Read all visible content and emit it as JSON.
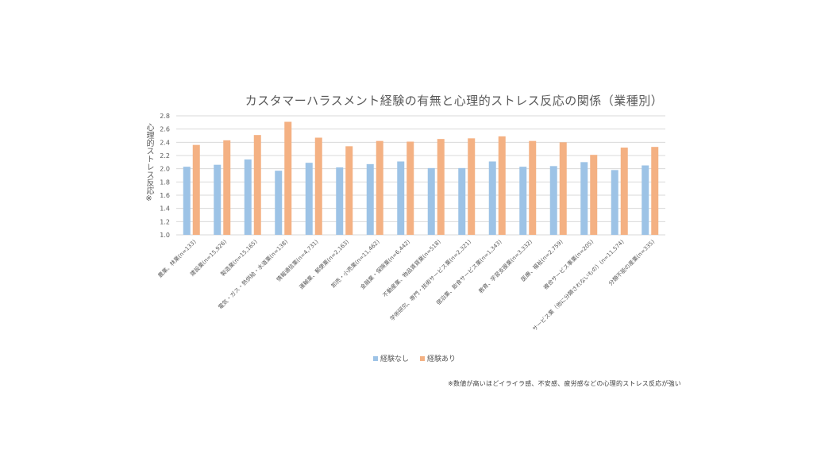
{
  "chart_data": {
    "type": "bar",
    "title": "カスタマーハラスメント経験の有無と心理的ストレス反応の関係（業種別）",
    "ylabel": "心理的ストレス反応※",
    "xlabel": "",
    "ylim": [
      1.0,
      2.8
    ],
    "yticks": [
      "1.0",
      "1.2",
      "1.4",
      "1.6",
      "1.8",
      "2.0",
      "2.2",
      "2.4",
      "2.6",
      "2.8"
    ],
    "grid": true,
    "legend_position": "bottom",
    "categories": [
      "農業、林業(n=133)",
      "建設業(n=15,926)",
      "製造業(n=15,165)",
      "電気・ガス・熱供給・水道業(n=138)",
      "情報通信業(n=4,731)",
      "運輸業、郵便業(n=2,163)",
      "卸売・小売業(n=11,462)",
      "金融業・保険業(n=6,442)",
      "不動産業、物品賃貸業(n=518)",
      "学術研究、専門・技術サービス業(n=2,321)",
      "宿泊業、飲食サービス業(n=1,343)",
      "教育、学習支援業(n=3,332)",
      "医療、福祉(n=2,759)",
      "複合サービス事業(n=205)",
      "サービス業（他に分類されないもの）(n=11,574)",
      "分類不能の産業(n=335)"
    ],
    "series": [
      {
        "name": "経験なし",
        "values": [
          2.03,
          2.06,
          2.14,
          1.97,
          2.09,
          2.02,
          2.07,
          2.11,
          2.01,
          2.01,
          2.11,
          2.03,
          2.04,
          2.1,
          1.98,
          2.05
        ]
      },
      {
        "name": "経験あり",
        "values": [
          2.36,
          2.43,
          2.51,
          2.71,
          2.47,
          2.34,
          2.42,
          2.41,
          2.45,
          2.46,
          2.49,
          2.42,
          2.4,
          2.21,
          2.32,
          2.33
        ]
      }
    ],
    "colors": {
      "経験なし": "#9dc3e6",
      "経験あり": "#f4b183",
      "grid": "#d9d9d9",
      "text": "#595959"
    }
  },
  "footnote": "※数値が高いほどイライラ感、不安感、疲労感などの心理的ストレス反応が強い"
}
